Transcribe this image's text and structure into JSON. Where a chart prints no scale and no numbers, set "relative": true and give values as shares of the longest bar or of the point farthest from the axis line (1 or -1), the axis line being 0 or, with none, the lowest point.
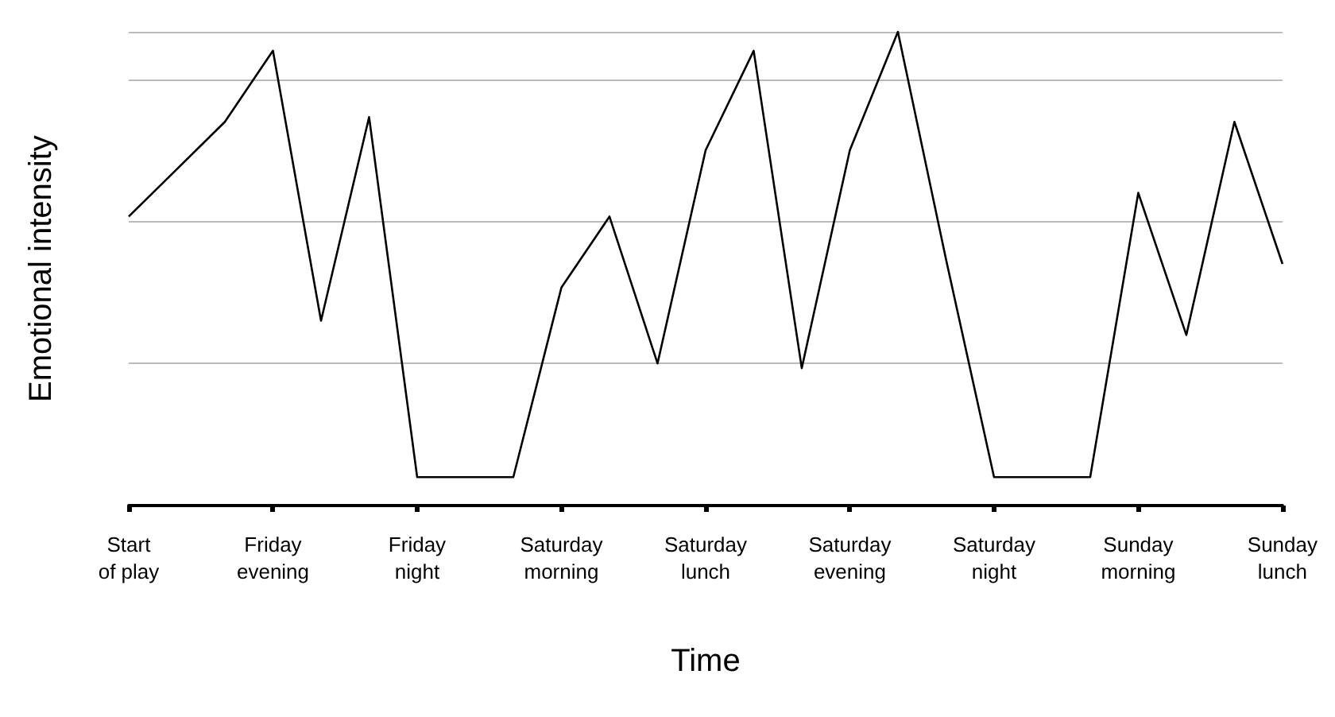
{
  "chart_data": {
    "type": "line",
    "xlabel": "Time",
    "ylabel": "Emotional intensity",
    "relative": true,
    "grid": "y",
    "marker": "none",
    "line_style": "solid",
    "categories": [
      "Start\nof play",
      null,
      null,
      "Friday\nevening",
      null,
      null,
      "Friday\nnight",
      null,
      null,
      "Saturday\nmorning",
      null,
      null,
      "Saturday\nlunch",
      null,
      null,
      "Saturday\nevening",
      null,
      null,
      "Saturday\nnight",
      null,
      null,
      "Sunday\nmorning",
      null,
      null,
      "Sunday\nlunch"
    ],
    "series": [
      {
        "color": "#000000",
        "values": [
          0.61,
          0.71,
          0.81,
          0.96,
          0.39,
          0.82,
          0.06,
          0.06,
          0.06,
          0.46,
          0.61,
          0.3,
          0.75,
          0.96,
          0.29,
          0.75,
          1,
          0.52,
          0.06,
          0.06,
          0.06,
          0.66,
          0.36,
          0.81,
          0.51
        ]
      }
    ]
  }
}
